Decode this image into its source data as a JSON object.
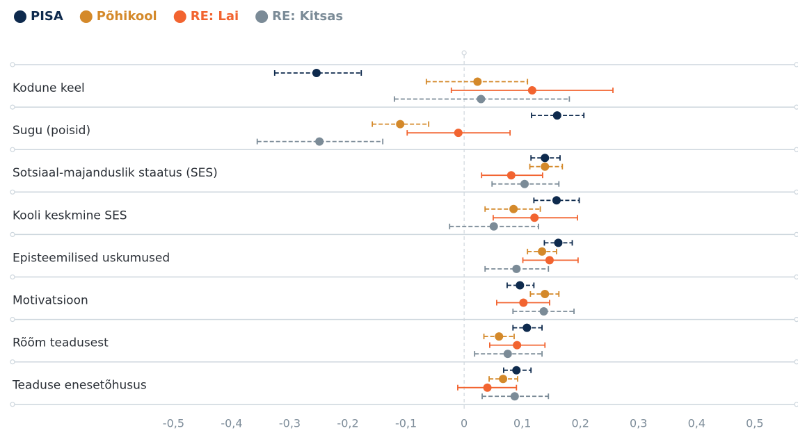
{
  "chart_data": {
    "type": "forest",
    "categories": [
      "Kodune keel",
      "Sugu (poisid)",
      "Sotsiaal-majanduslik staatus (SES)",
      "Kooli keskmine SES",
      "Episteemilised uskumused",
      "Motivatsioon",
      "Rõõm teadusest",
      "Teaduse enesetõhusus"
    ],
    "series": [
      {
        "name": "PISA",
        "color": "#0e2a4d",
        "dashed": true,
        "values": [
          -0.254,
          0.16,
          0.139,
          0.159,
          0.162,
          0.096,
          0.108,
          0.09
        ],
        "lower": [
          -0.326,
          0.116,
          0.115,
          0.12,
          0.138,
          0.074,
          0.084,
          0.068
        ],
        "upper": [
          -0.177,
          0.206,
          0.165,
          0.198,
          0.186,
          0.12,
          0.134,
          0.115
        ]
      },
      {
        "name": "Põhikool",
        "color": "#d4892a",
        "dashed": true,
        "values": [
          0.023,
          -0.11,
          0.139,
          0.085,
          0.134,
          0.139,
          0.06,
          0.067
        ],
        "lower": [
          -0.065,
          -0.158,
          0.113,
          0.036,
          0.109,
          0.114,
          0.034,
          0.043
        ],
        "upper": [
          0.109,
          -0.061,
          0.169,
          0.131,
          0.159,
          0.163,
          0.086,
          0.092
        ]
      },
      {
        "name": "RE: Lai",
        "color": "#f26430",
        "dashed": false,
        "values": [
          0.117,
          -0.01,
          0.081,
          0.121,
          0.147,
          0.102,
          0.091,
          0.04
        ],
        "lower": [
          -0.022,
          -0.098,
          0.03,
          0.05,
          0.101,
          0.056,
          0.044,
          -0.011
        ],
        "upper": [
          0.256,
          0.079,
          0.135,
          0.195,
          0.196,
          0.147,
          0.139,
          0.09
        ]
      },
      {
        "name": "RE: Kitsas",
        "color": "#7b8b97",
        "dashed": true,
        "values": [
          0.029,
          -0.249,
          0.104,
          0.051,
          0.09,
          0.137,
          0.075,
          0.087
        ],
        "lower": [
          -0.12,
          -0.356,
          0.048,
          -0.025,
          0.036,
          0.084,
          0.018,
          0.031
        ],
        "upper": [
          0.181,
          -0.14,
          0.163,
          0.128,
          0.145,
          0.189,
          0.134,
          0.145
        ]
      }
    ],
    "xlim": [
      -0.777,
      0.572
    ],
    "xticks": [
      {
        "value": -0.5,
        "label": "-0,5"
      },
      {
        "value": -0.4,
        "label": "-0,4"
      },
      {
        "value": -0.3,
        "label": "-0,3"
      },
      {
        "value": -0.2,
        "label": "-0,2"
      },
      {
        "value": -0.1,
        "label": "-0,1"
      },
      0,
      {
        "value": 0.1,
        "label": "0,1"
      },
      {
        "value": 0.2,
        "label": "0,2"
      },
      {
        "value": 0.3,
        "label": "0,3"
      },
      {
        "value": 0.4,
        "label": "0,4"
      },
      {
        "value": 0.5,
        "label": "0,5"
      }
    ]
  }
}
